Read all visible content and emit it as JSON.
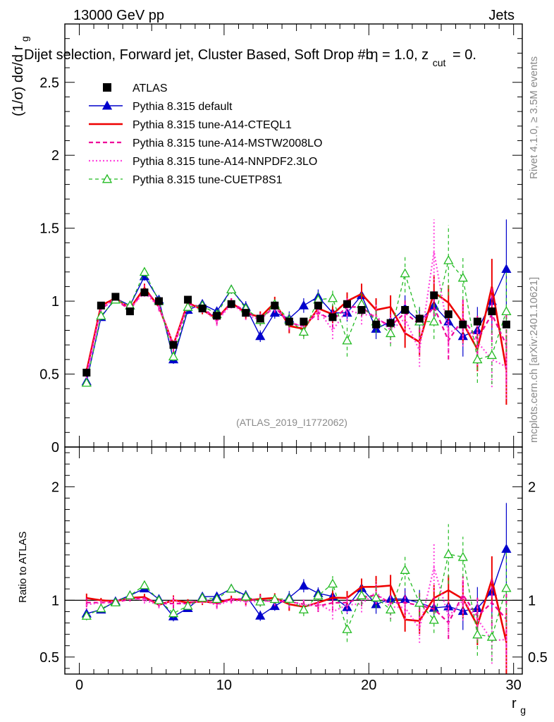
{
  "header": {
    "left": "13000 GeV pp",
    "right": "Jets"
  },
  "title": "Dijet selection, Forward jet, Cluster Based, Soft Drop #b",
  "title_tail": "η = 1.0, z",
  "title_sub": "cut",
  "title_end": "= 0.",
  "side_labels": {
    "rivet": "Rivet 4.1.0, ≥ 3.5M events",
    "mcplots": "mcplots.cern.ch [arXiv:2401.10621]"
  },
  "watermark": "(ATLAS_2019_I1772062)",
  "chart_data": {
    "type": "line",
    "x": [
      0.5,
      1.5,
      2.5,
      3.5,
      4.5,
      5.5,
      6.5,
      7.5,
      8.5,
      9.5,
      10.5,
      11.5,
      12.5,
      13.5,
      14.5,
      15.5,
      16.5,
      17.5,
      18.5,
      19.5,
      20.5,
      21.5,
      22.5,
      23.5,
      24.5,
      25.5,
      26.5,
      27.5,
      28.5,
      29.5
    ],
    "xlabel": "r",
    "xlabel_sub": "g",
    "ylabel": "(1/σ) dσ/d r",
    "ylabel_sub": "g",
    "xlim": [
      -1,
      30.6
    ],
    "ylim": [
      0,
      2.9
    ],
    "yticks": [
      "0",
      "0.5",
      "1",
      "1.5",
      "2",
      "2.5"
    ],
    "xticks": [
      "0",
      "10",
      "20",
      "30"
    ],
    "ratio": {
      "ylabel": "Ratio to ATLAS",
      "ylim": [
        0.35,
        2.35
      ],
      "yticks": [
        "0.5",
        "1",
        "2"
      ]
    },
    "series": [
      {
        "name": "ATLAS",
        "color": "#000000",
        "style": "data",
        "values": [
          0.51,
          0.97,
          1.03,
          0.93,
          1.06,
          1.0,
          0.7,
          1.01,
          0.95,
          0.9,
          0.98,
          0.92,
          0.88,
          0.97,
          0.86,
          0.86,
          0.97,
          0.89,
          0.98,
          0.94,
          0.84,
          0.85,
          0.94,
          0.88,
          1.04,
          0.91,
          0.84,
          0.86,
          0.93,
          0.84
        ]
      },
      {
        "name": "Pythia 8.315 default",
        "color": "#0000cc",
        "style": "solid-tri",
        "values": [
          0.45,
          0.89,
          1.02,
          0.97,
          1.17,
          1.01,
          0.6,
          0.94,
          0.98,
          0.93,
          1.08,
          0.96,
          0.76,
          0.92,
          0.88,
          0.97,
          1.03,
          0.92,
          0.92,
          1.04,
          0.81,
          0.86,
          0.95,
          0.86,
          0.97,
          0.86,
          0.76,
          0.8,
          1.0,
          1.22
        ],
        "errors": [
          0.02,
          0.02,
          0.02,
          0.02,
          0.03,
          0.03,
          0.03,
          0.03,
          0.03,
          0.03,
          0.03,
          0.04,
          0.04,
          0.04,
          0.05,
          0.05,
          0.05,
          0.06,
          0.06,
          0.07,
          0.07,
          0.08,
          0.09,
          0.1,
          0.11,
          0.12,
          0.14,
          0.16,
          0.2,
          0.34
        ]
      },
      {
        "name": "Pythia 8.315 tune-A14-CTEQL1",
        "color": "#ee0000",
        "style": "solid-thick",
        "values": [
          0.52,
          0.97,
          1.02,
          0.95,
          1.09,
          0.96,
          0.7,
          0.99,
          0.94,
          0.88,
          0.99,
          0.92,
          0.89,
          0.99,
          0.83,
          0.81,
          0.95,
          0.91,
          1.0,
          1.05,
          0.94,
          0.96,
          0.78,
          0.72,
          1.06,
          0.99,
          0.85,
          0.67,
          1.1,
          0.53
        ],
        "errors": [
          0.02,
          0.02,
          0.02,
          0.02,
          0.03,
          0.03,
          0.03,
          0.03,
          0.03,
          0.03,
          0.03,
          0.04,
          0.04,
          0.04,
          0.05,
          0.05,
          0.05,
          0.06,
          0.06,
          0.07,
          0.08,
          0.08,
          0.1,
          0.1,
          0.12,
          0.12,
          0.14,
          0.15,
          0.19,
          0.24
        ]
      },
      {
        "name": "Pythia 8.315 tune-A14-MSTW2008LO",
        "color": "#ee0099",
        "style": "dashed",
        "values": [
          0.5,
          0.95,
          1.01,
          0.94,
          1.08,
          0.97,
          0.68,
          0.98,
          0.96,
          0.87,
          0.99,
          0.93,
          0.88,
          0.96,
          0.85,
          0.83,
          0.92,
          0.87,
          0.96,
          0.96,
          0.88,
          0.83,
          0.92,
          0.84,
          0.96,
          0.73,
          0.88,
          0.74,
          0.91,
          0.7
        ],
        "errors": [
          0.02,
          0.02,
          0.02,
          0.02,
          0.03,
          0.03,
          0.03,
          0.03,
          0.03,
          0.03,
          0.03,
          0.04,
          0.04,
          0.04,
          0.05,
          0.05,
          0.05,
          0.06,
          0.06,
          0.07,
          0.07,
          0.08,
          0.09,
          0.1,
          0.11,
          0.13,
          0.14,
          0.16,
          0.19,
          0.26
        ]
      },
      {
        "name": "Pythia 8.315 tune-A14-NNPDF2.3LO",
        "color": "#ff44dd",
        "style": "dotted",
        "values": [
          0.49,
          0.95,
          1.02,
          0.95,
          1.06,
          0.96,
          0.7,
          0.97,
          0.95,
          0.86,
          0.98,
          0.91,
          0.87,
          0.97,
          0.86,
          0.82,
          0.94,
          0.8,
          0.94,
          0.91,
          0.9,
          0.8,
          0.88,
          0.66,
          1.34,
          0.78,
          0.84,
          0.72,
          0.6,
          0.55
        ],
        "errors": [
          0.02,
          0.02,
          0.02,
          0.02,
          0.03,
          0.03,
          0.03,
          0.03,
          0.03,
          0.03,
          0.03,
          0.04,
          0.04,
          0.04,
          0.05,
          0.05,
          0.06,
          0.06,
          0.07,
          0.07,
          0.08,
          0.09,
          0.1,
          0.11,
          0.22,
          0.14,
          0.15,
          0.16,
          0.19,
          0.22
        ]
      },
      {
        "name": "Pythia 8.315 tune-CUETP8S1",
        "color": "#22bb22",
        "style": "dashed-tri-open",
        "values": [
          0.44,
          0.9,
          1.01,
          0.97,
          1.2,
          1.0,
          0.62,
          0.96,
          0.97,
          0.91,
          1.08,
          0.95,
          0.87,
          0.98,
          0.87,
          0.79,
          1.01,
          1.02,
          0.73,
          0.98,
          0.86,
          0.78,
          1.19,
          0.86,
          0.86,
          1.28,
          1.16,
          0.6,
          0.63,
          0.93
        ],
        "errors": [
          0.02,
          0.02,
          0.02,
          0.02,
          0.03,
          0.03,
          0.03,
          0.03,
          0.03,
          0.03,
          0.03,
          0.04,
          0.04,
          0.04,
          0.05,
          0.05,
          0.05,
          0.06,
          0.11,
          0.08,
          0.08,
          0.09,
          0.13,
          0.1,
          0.12,
          0.24,
          0.15,
          0.16,
          0.2,
          0.28
        ]
      }
    ]
  }
}
